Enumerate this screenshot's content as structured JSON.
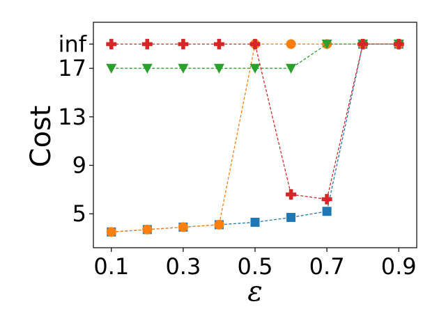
{
  "chart_data": {
    "type": "line",
    "title": "",
    "xlabel": "ε",
    "ylabel": "Cost",
    "xlim": [
      0.05,
      0.95
    ],
    "ylim": [
      2.2,
      20.8
    ],
    "x_ticks": [
      0.1,
      0.3,
      0.5,
      0.7,
      0.9
    ],
    "x_tick_labels": [
      "0.1",
      "0.3",
      "0.5",
      "0.7",
      "0.9"
    ],
    "y_ticks": [
      5,
      9,
      13,
      17,
      19
    ],
    "y_tick_labels": [
      "5",
      "9",
      "13",
      "17",
      "inf"
    ],
    "inf_value": 19,
    "grid": false,
    "legend": "none",
    "x": [
      0.1,
      0.2,
      0.3,
      0.4,
      0.5,
      0.6,
      0.7,
      0.8,
      0.9
    ],
    "series": [
      {
        "color": "#1f77b4",
        "marker": "square",
        "values": [
          3.5,
          3.7,
          3.9,
          4.1,
          4.3,
          4.7,
          5.2,
          19,
          19
        ]
      },
      {
        "color": "#ff7f0e",
        "marker": "circle",
        "values": [
          3.5,
          3.7,
          3.9,
          4.1,
          19,
          19,
          19,
          19,
          19
        ]
      },
      {
        "color": "#2ca02c",
        "marker": "triangle-down",
        "values": [
          17,
          17,
          17,
          17,
          17,
          17,
          19,
          19,
          19
        ]
      },
      {
        "color": "#d62728",
        "marker": "plus",
        "values": [
          19,
          19,
          19,
          19,
          19,
          6.6,
          6.2,
          19,
          19
        ]
      }
    ]
  }
}
